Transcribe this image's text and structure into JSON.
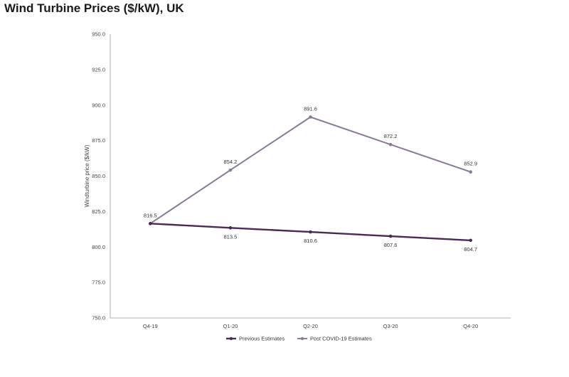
{
  "chart_data": {
    "type": "line",
    "title": "Wind Turbine Prices ($/kW), UK",
    "xlabel": "",
    "ylabel": "Windturbine price ($/kW)",
    "categories": [
      "Q4-19",
      "Q1-20",
      "Q2-20",
      "Q3-20",
      "Q4-20"
    ],
    "ylim": [
      750,
      950
    ],
    "yticks": [
      "750.0",
      "775.0",
      "800.0",
      "825.0",
      "850.0",
      "875.0",
      "900.0",
      "925.0",
      "950.0"
    ],
    "grid": false,
    "legend_position": "bottom",
    "series": [
      {
        "name": "Previous Estimates",
        "values": [
          816.5,
          813.5,
          810.6,
          807.6,
          804.7
        ],
        "labels": [
          "",
          "813.5",
          "810.6",
          "807.6",
          "804.7"
        ],
        "label_side": "below",
        "color": "#4b2a56"
      },
      {
        "name": "Post COVID-19 Estimates",
        "values": [
          816.5,
          854.2,
          891.6,
          872.2,
          852.9
        ],
        "labels": [
          "816.5",
          "854.2",
          "891.6",
          "872.2",
          "852.9"
        ],
        "label_side": "above",
        "color": "#8a7a98"
      }
    ]
  }
}
